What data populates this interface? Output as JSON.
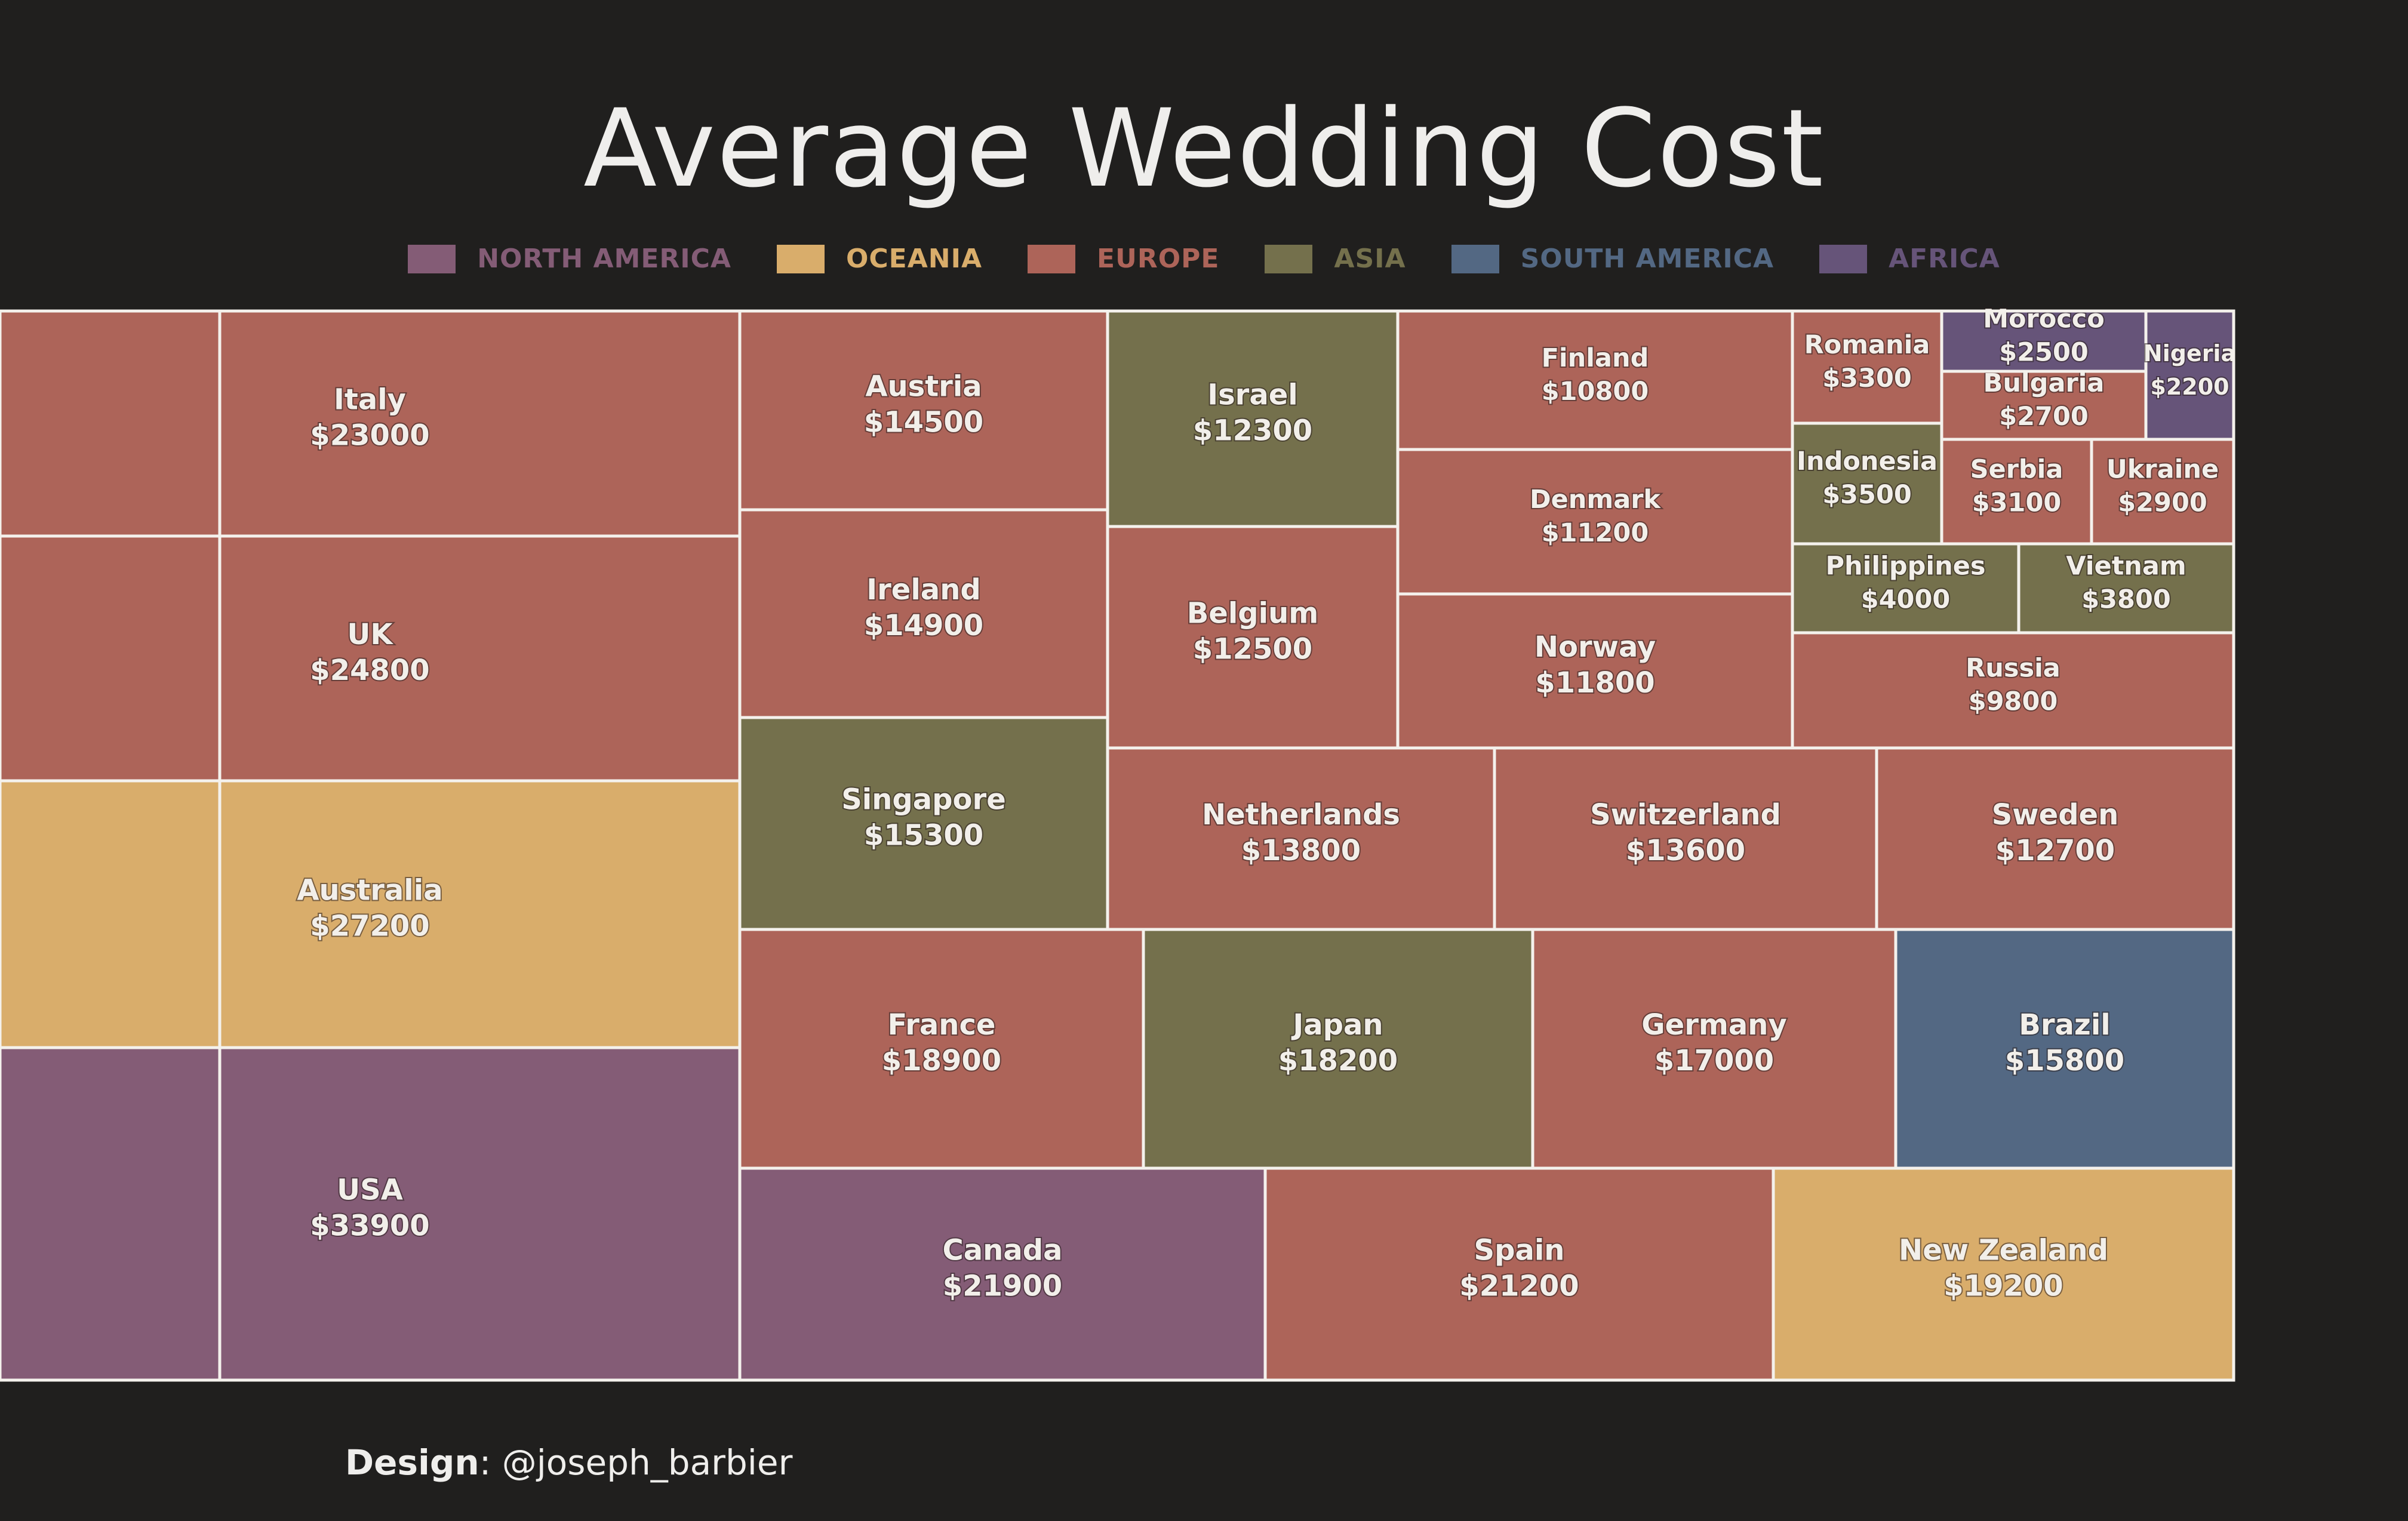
{
  "title": "Average Wedding Cost",
  "credit": {
    "label": "Design",
    "sep": ":",
    "handle": "@joseph_barbier"
  },
  "legend": [
    {
      "name": "NORTH AMERICA",
      "color": "#845c76"
    },
    {
      "name": "OCEANIA",
      "color": "#d9ad6b"
    },
    {
      "name": "EUROPE",
      "color": "#ad6459"
    },
    {
      "name": "ASIA",
      "color": "#74704c"
    },
    {
      "name": "SOUTH AMERICA",
      "color": "#536883"
    },
    {
      "name": "AFRICA",
      "color": "#665479"
    }
  ],
  "chart_data": {
    "type": "treemap",
    "title": "Average Wedding Cost",
    "unit": "$",
    "items": [
      {
        "country": "USA",
        "value": 33900,
        "region": "NORTH AMERICA"
      },
      {
        "country": "Australia",
        "value": 27200,
        "region": "OCEANIA"
      },
      {
        "country": "UK",
        "value": 24800,
        "region": "EUROPE"
      },
      {
        "country": "Italy",
        "value": 23000,
        "region": "EUROPE"
      },
      {
        "country": "Canada",
        "value": 21900,
        "region": "NORTH AMERICA"
      },
      {
        "country": "Spain",
        "value": 21200,
        "region": "EUROPE"
      },
      {
        "country": "New Zealand",
        "value": 19200,
        "region": "OCEANIA"
      },
      {
        "country": "France",
        "value": 18900,
        "region": "EUROPE"
      },
      {
        "country": "Japan",
        "value": 18200,
        "region": "ASIA"
      },
      {
        "country": "Germany",
        "value": 17000,
        "region": "EUROPE"
      },
      {
        "country": "Brazil",
        "value": 15800,
        "region": "SOUTH AMERICA"
      },
      {
        "country": "Singapore",
        "value": 15300,
        "region": "ASIA"
      },
      {
        "country": "Ireland",
        "value": 14900,
        "region": "EUROPE"
      },
      {
        "country": "Austria",
        "value": 14500,
        "region": "EUROPE"
      },
      {
        "country": "Netherlands",
        "value": 13800,
        "region": "EUROPE"
      },
      {
        "country": "Switzerland",
        "value": 13600,
        "region": "EUROPE"
      },
      {
        "country": "Sweden",
        "value": 12700,
        "region": "EUROPE"
      },
      {
        "country": "Belgium",
        "value": 12500,
        "region": "EUROPE"
      },
      {
        "country": "Israel",
        "value": 12300,
        "region": "ASIA"
      },
      {
        "country": "Norway",
        "value": 11800,
        "region": "EUROPE"
      },
      {
        "country": "Denmark",
        "value": 11200,
        "region": "EUROPE"
      },
      {
        "country": "Finland",
        "value": 10800,
        "region": "EUROPE"
      },
      {
        "country": "Russia",
        "value": 9800,
        "region": "EUROPE"
      },
      {
        "country": "Philippines",
        "value": 4000,
        "region": "ASIA"
      },
      {
        "country": "Vietnam",
        "value": 3800,
        "region": "ASIA"
      },
      {
        "country": "Indonesia",
        "value": 3500,
        "region": "ASIA"
      },
      {
        "country": "Romania",
        "value": 3300,
        "region": "EUROPE"
      },
      {
        "country": "Serbia",
        "value": 3100,
        "region": "EUROPE"
      },
      {
        "country": "Ukraine",
        "value": 2900,
        "region": "EUROPE"
      },
      {
        "country": "Bulgaria",
        "value": 2700,
        "region": "EUROPE"
      },
      {
        "country": "Morocco",
        "value": 2500,
        "region": "AFRICA"
      },
      {
        "country": "Nigeria",
        "value": 2200,
        "region": "AFRICA"
      }
    ]
  }
}
